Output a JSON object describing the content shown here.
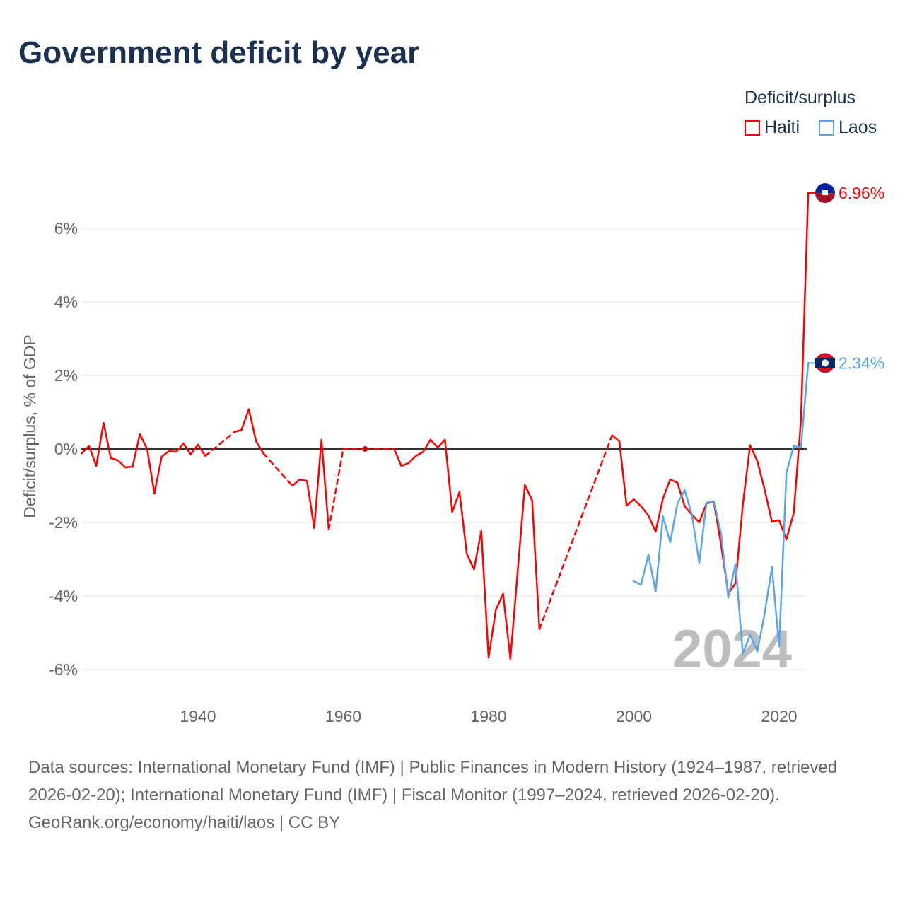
{
  "title": "Government deficit by year",
  "legend": {
    "title": "Deficit/surplus",
    "items": [
      "Haiti",
      "Laos"
    ]
  },
  "footer": {
    "sources": "Data sources: International Monetary Fund (IMF) | Public Finances in Modern History (1924–1987, retrieved 2026-02-20); International Monetary Fund (IMF) | Fiscal Monitor (1997–2024, retrieved 2026-02-20).",
    "credit": "GeoRank.org/economy/haiti/laos | CC BY"
  },
  "chart_data": {
    "type": "line",
    "title": "Government deficit by year",
    "ylabel": "Deficit/surplus, % of GDP",
    "xlabel": "",
    "ylim": [
      -6.5,
      7.2
    ],
    "xlim": [
      1924,
      2024
    ],
    "yticks": [
      {
        "v": 6,
        "label": "6%"
      },
      {
        "v": 4,
        "label": "4%"
      },
      {
        "v": 2,
        "label": "2%"
      },
      {
        "v": 0,
        "label": "0%"
      },
      {
        "v": -2,
        "label": "-2%"
      },
      {
        "v": -4,
        "label": "-4%"
      },
      {
        "v": -6,
        "label": "-6%"
      }
    ],
    "xticks": [
      {
        "v": 1940,
        "label": "1940"
      },
      {
        "v": 1960,
        "label": "1960"
      },
      {
        "v": 1980,
        "label": "1980"
      },
      {
        "v": 2000,
        "label": "2000"
      },
      {
        "v": 2020,
        "label": "2020"
      }
    ],
    "year_watermark": "2024",
    "series": [
      {
        "name": "Haiti",
        "color": "#ff0000",
        "end_label": "6.96%",
        "x": [
          1924,
          1925,
          1926,
          1927,
          1928,
          1929,
          1930,
          1931,
          1932,
          1933,
          1934,
          1935,
          1936,
          1937,
          1938,
          1939,
          1940,
          1941,
          1945,
          1946,
          1947,
          1948,
          1949,
          1953,
          1954,
          1955,
          1956,
          1957,
          1958,
          1960,
          1963,
          1967,
          1968,
          1969,
          1970,
          1971,
          1972,
          1973,
          1974,
          1975,
          1976,
          1977,
          1978,
          1979,
          1980,
          1981,
          1982,
          1983,
          1984,
          1985,
          1986,
          1987,
          1997,
          1998,
          1999,
          2000,
          2001,
          2002,
          2003,
          2004,
          2005,
          2006,
          2007,
          2008,
          2009,
          2010,
          2011,
          2012,
          2013,
          2014,
          2015,
          2016,
          2017,
          2018,
          2019,
          2020,
          2021,
          2022,
          2023,
          2024
        ],
        "y": [
          -0.12,
          0.08,
          -0.46,
          0.71,
          -0.25,
          -0.31,
          -0.5,
          -0.48,
          0.4,
          0.0,
          -1.21,
          -0.21,
          -0.06,
          -0.08,
          0.15,
          -0.15,
          0.12,
          -0.19,
          0.46,
          0.52,
          1.08,
          0.21,
          -0.12,
          -1.0,
          -0.83,
          -0.87,
          -2.15,
          0.25,
          -2.19,
          0.0,
          0.0,
          0.0,
          -0.46,
          -0.38,
          -0.19,
          -0.08,
          0.25,
          0.04,
          0.25,
          -1.71,
          -1.17,
          -2.85,
          -3.27,
          -2.23,
          -5.67,
          -4.38,
          -3.94,
          -5.71,
          -3.35,
          -0.98,
          -1.4,
          -4.9,
          0.37,
          0.21,
          -1.54,
          -1.37,
          -1.56,
          -1.81,
          -2.25,
          -1.35,
          -0.83,
          -0.92,
          -1.56,
          -1.79,
          -2.0,
          -1.48,
          -1.44,
          -2.6,
          -3.94,
          -3.65,
          -1.52,
          0.1,
          -0.33,
          -1.1,
          -1.98,
          -1.94,
          -2.46,
          -1.75,
          0.77,
          6.96
        ]
      },
      {
        "name": "Laos",
        "color": "#5aa5eb",
        "end_label": "2.34%",
        "x": [
          2000,
          2001,
          2002,
          2003,
          2004,
          2005,
          2006,
          2007,
          2008,
          2009,
          2010,
          2011,
          2012,
          2013,
          2014,
          2015,
          2016,
          2017,
          2018,
          2019,
          2020,
          2021,
          2022,
          2023,
          2024
        ],
        "y": [
          -3.6,
          -3.69,
          -2.87,
          -3.88,
          -1.83,
          -2.54,
          -1.48,
          -1.12,
          -1.8,
          -3.1,
          -1.46,
          -1.42,
          -2.3,
          -4.04,
          -3.13,
          -5.56,
          -5.06,
          -5.5,
          -4.48,
          -3.21,
          -5.37,
          -0.65,
          0.08,
          0.04,
          2.34
        ]
      }
    ]
  }
}
